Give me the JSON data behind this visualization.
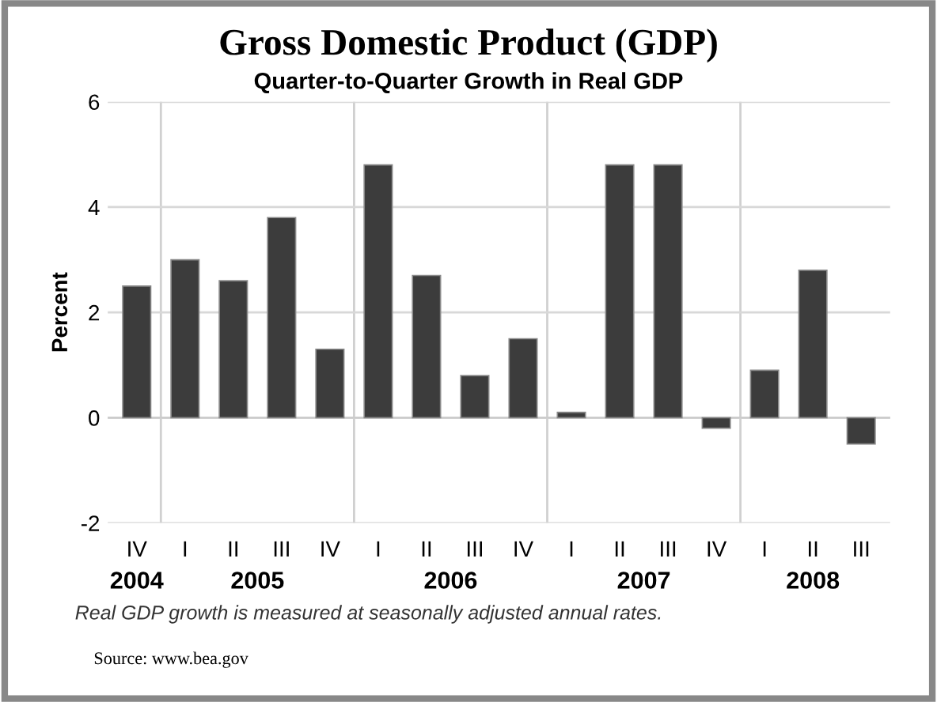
{
  "chart_data": {
    "type": "bar",
    "title": "Gross Domestic Product (GDP)",
    "subtitle": "Quarter-to-Quarter Growth in Real GDP",
    "ylabel": "Percent",
    "categories": [
      "IV",
      "I",
      "II",
      "III",
      "IV",
      "I",
      "II",
      "III",
      "IV",
      "I",
      "II",
      "III",
      "IV",
      "I",
      "II",
      "III"
    ],
    "values": [
      2.5,
      3.0,
      2.6,
      3.8,
      1.3,
      4.8,
      2.7,
      0.8,
      1.5,
      0.1,
      4.8,
      4.8,
      -0.2,
      0.9,
      2.8,
      -0.5
    ],
    "color": "#3c3c3c",
    "ylim": [
      -2,
      6
    ],
    "yticks": [
      -2,
      0,
      2,
      4,
      6
    ],
    "grid": true,
    "annotations": [
      "2004",
      "2005",
      "2006",
      "2007",
      "2008",
      "Real GDP growth is measured at seasonally adjusted annual rates.",
      "Source: www.bea.gov"
    ]
  }
}
